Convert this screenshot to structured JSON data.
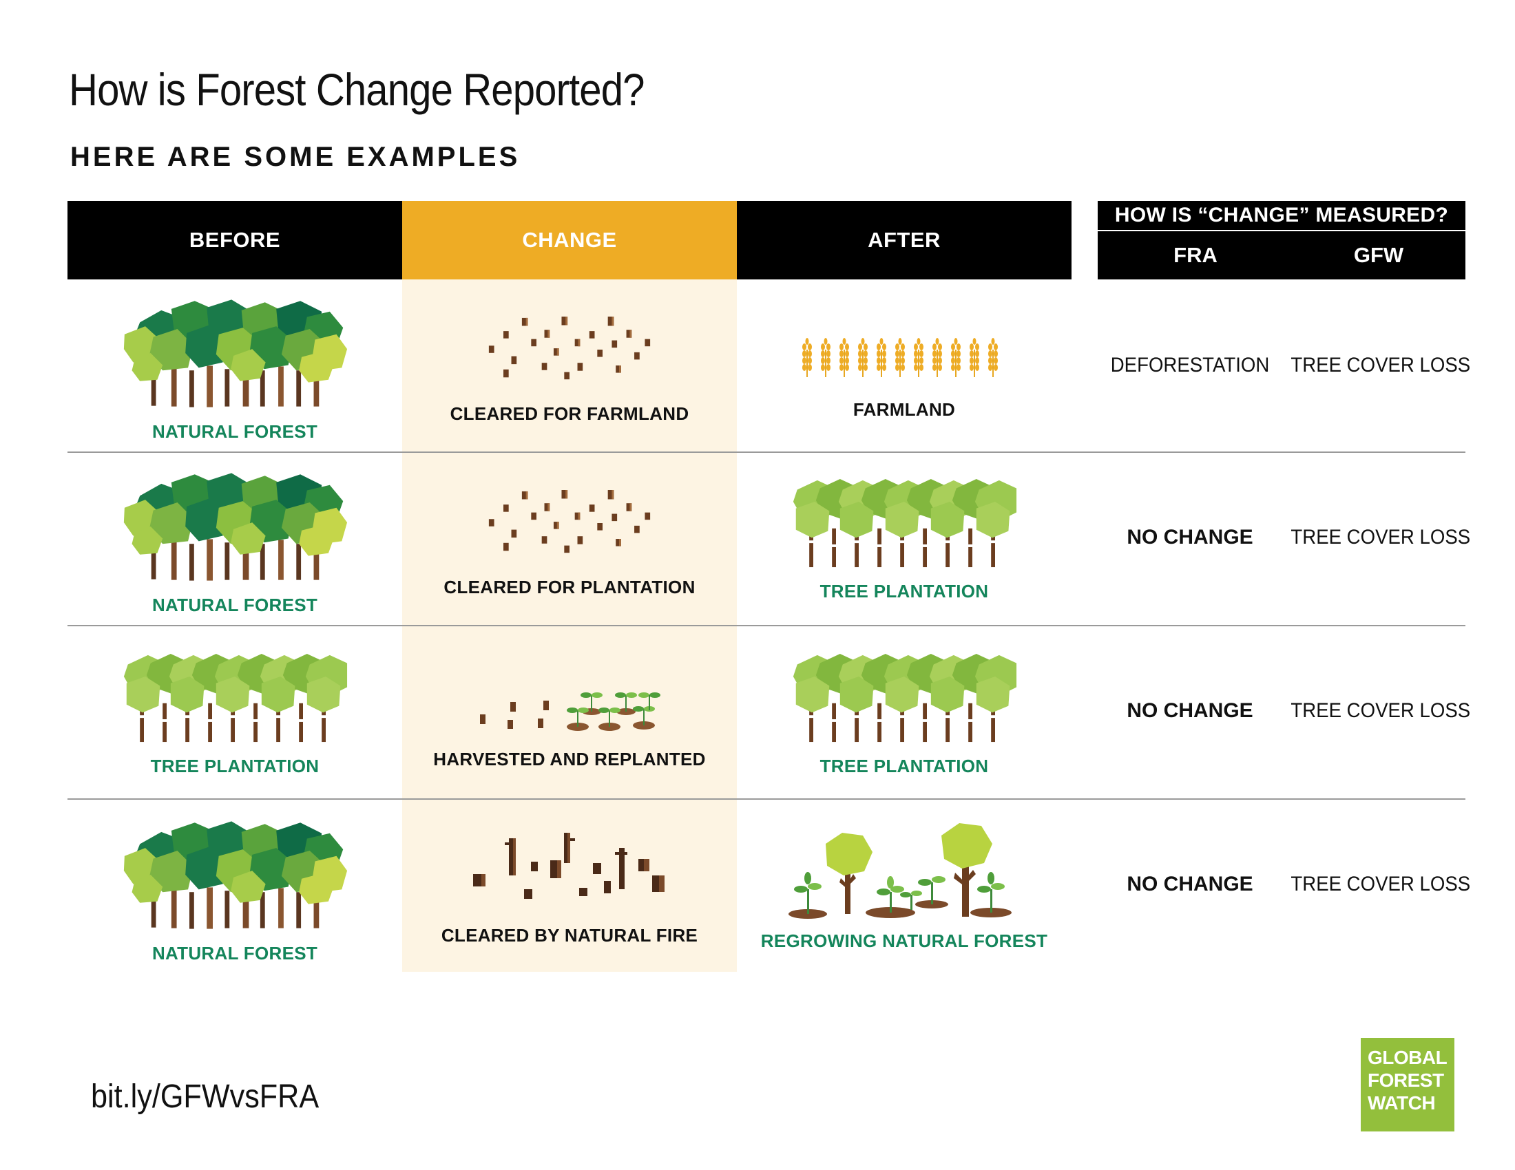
{
  "title": "How is Forest Change Reported?",
  "subtitle": "HERE ARE SOME EXAMPLES",
  "headers": {
    "before": "BEFORE",
    "change": "CHANGE",
    "after": "AFTER",
    "measured": "HOW IS “CHANGE” MEASURED?",
    "fra": "FRA",
    "gfw": "GFW"
  },
  "rows": [
    {
      "before": "NATURAL FOREST",
      "change": "CLEARED FOR FARMLAND",
      "after": "FARMLAND",
      "fra": "DEFORESTATION",
      "gfw": "TREE COVER LOSS"
    },
    {
      "before": "NATURAL FOREST",
      "change": "CLEARED FOR PLANTATION",
      "after": "TREE PLANTATION",
      "fra": "NO CHANGE",
      "gfw": "TREE COVER LOSS"
    },
    {
      "before": "TREE PLANTATION",
      "change": "HARVESTED AND REPLANTED",
      "after": "TREE PLANTATION",
      "fra": "NO CHANGE",
      "gfw": "TREE COVER LOSS"
    },
    {
      "before": "NATURAL FOREST",
      "change": "CLEARED BY NATURAL FIRE",
      "after": "REGROWING NATURAL FOREST",
      "fra": "NO CHANGE",
      "gfw": "TREE COVER LOSS"
    }
  ],
  "footer": {
    "url": "bit.ly/GFWvsFRA",
    "logo_line1": "GLOBAL",
    "logo_line2": "FOREST",
    "logo_line3": "WATCH"
  },
  "colors": {
    "header_bg": "#000000",
    "change_header": "#eeac25",
    "change_column_bg": "#fdf4e3",
    "label_green": "#14855b",
    "logo_green": "#93bf3c"
  },
  "icons": {
    "natural_forest": "natural-forest-icon",
    "tree_plantation": "tree-plantation-icon",
    "stumps": "stumps-icon",
    "wheat": "wheat-icon",
    "seedlings": "seedlings-icon",
    "burnt": "burnt-stumps-icon",
    "regrowth": "regrowing-forest-icon"
  }
}
